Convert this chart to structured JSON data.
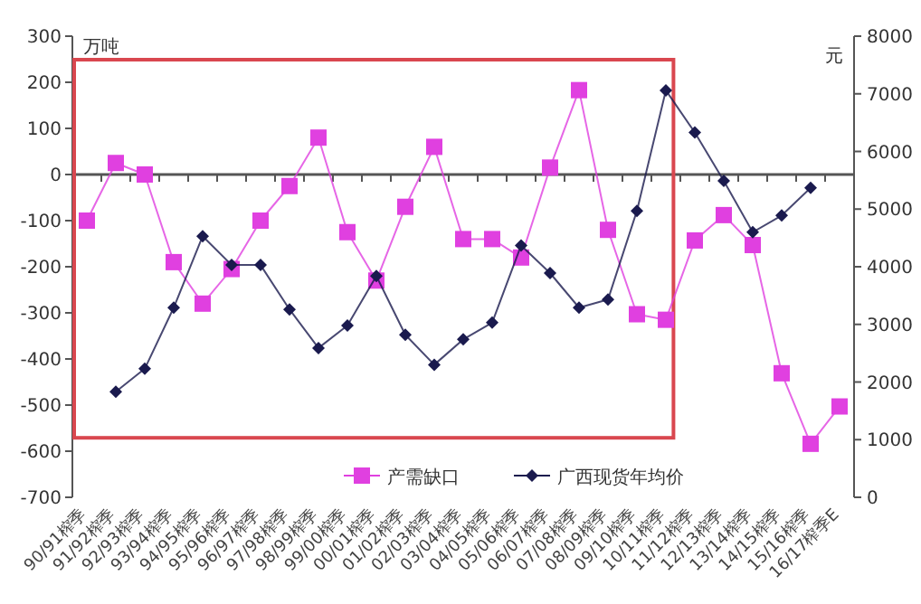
{
  "chart_data": {
    "type": "line",
    "categories": [
      "90/91榨季",
      "91/92榨季",
      "92/93榨季",
      "93/94榨季",
      "94/95榨季",
      "95/96榨季",
      "96/97榨季",
      "97/98榨季",
      "98/99榨季",
      "99/00榨季",
      "00/01榨季",
      "01/02榨季",
      "02/03榨季",
      "03/04榨季",
      "04/05榨季",
      "05/06榨季",
      "06/07榨季",
      "07/08榨季",
      "08/09榨季",
      "09/10榨季",
      "10/11榨季",
      "11/12榨季",
      "12/13榨季",
      "13/14榨季",
      "14/15榨季",
      "15/16榨季",
      "16/17榨季E"
    ],
    "series": [
      {
        "name": "产需缺口",
        "color": "#e040e0",
        "marker": "square",
        "values": [
          -100,
          25,
          0,
          -190,
          -280,
          -205,
          -100,
          -25,
          80,
          -125,
          -230,
          -70,
          60,
          -140,
          -140,
          -180,
          15,
          183,
          -120,
          -303,
          -315,
          -143,
          -88,
          -153,
          -431,
          -584,
          -503
        ]
      },
      {
        "name": "广西现货年均价",
        "color": "#1a1a4e",
        "marker": "diamond",
        "axis": "y2",
        "values": [
          null,
          1830,
          2230,
          3290,
          4530,
          4030,
          4030,
          3260,
          2590,
          2980,
          3840,
          2820,
          2300,
          2740,
          3030,
          4370,
          3890,
          3290,
          3430,
          4970,
          7060,
          6330,
          5490,
          4600,
          4890,
          5370,
          null
        ]
      }
    ],
    "ylabel": "万吨",
    "y2label": "元",
    "ylim": [
      -700,
      300
    ],
    "yticks": [
      -700,
      -600,
      -500,
      -400,
      -300,
      -200,
      -100,
      0,
      100,
      200,
      300
    ],
    "y2lim": [
      0,
      8000
    ],
    "y2ticks": [
      0,
      1000,
      2000,
      3000,
      4000,
      5000,
      6000,
      7000,
      8000
    ],
    "legend": "bottom",
    "line_style": "solid"
  }
}
